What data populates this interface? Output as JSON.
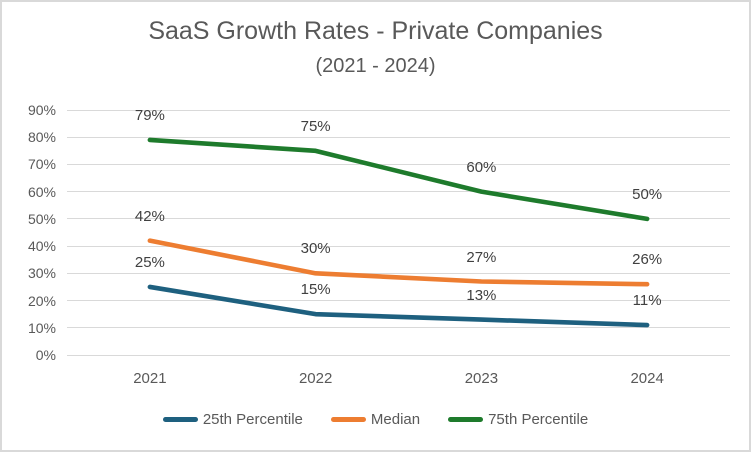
{
  "frame": {
    "background": "#ffffff",
    "border_color": "#d9d9d9"
  },
  "chart_data": {
    "type": "line",
    "title": "SaaS Growth Rates - Private Companies",
    "subtitle": "(2021 - 2024)",
    "title_color": "#595959",
    "tick_label_color": "#595959",
    "data_label_color": "#404040",
    "gridline_color": "#d9d9d9",
    "grid": true,
    "legend_position": "bottom",
    "categories": [
      "2021",
      "2022",
      "2023",
      "2024"
    ],
    "y_axis": {
      "ylim": [
        0,
        90
      ],
      "ticks": [
        {
          "value": 0,
          "label": "0%"
        },
        {
          "value": 10,
          "label": "10%"
        },
        {
          "value": 20,
          "label": "20%"
        },
        {
          "value": 30,
          "label": "30%"
        },
        {
          "value": 40,
          "label": "40%"
        },
        {
          "value": 50,
          "label": "50%"
        },
        {
          "value": 60,
          "label": "60%"
        },
        {
          "value": 70,
          "label": "70%"
        },
        {
          "value": 80,
          "label": "80%"
        },
        {
          "value": 90,
          "label": "90%"
        }
      ]
    },
    "series": [
      {
        "name": "25th Percentile",
        "color": "#1e607f",
        "values": [
          25,
          15,
          13,
          11
        ],
        "labels": [
          "25%",
          "15%",
          "13%",
          "11%"
        ]
      },
      {
        "name": "Median",
        "color": "#ed7d31",
        "values": [
          42,
          30,
          27,
          26
        ],
        "labels": [
          "42%",
          "30%",
          "27%",
          "26%"
        ]
      },
      {
        "name": "75th Percentile",
        "color": "#1e7b2c",
        "values": [
          79,
          75,
          60,
          50
        ],
        "labels": [
          "79%",
          "75%",
          "60%",
          "50%"
        ]
      }
    ]
  }
}
